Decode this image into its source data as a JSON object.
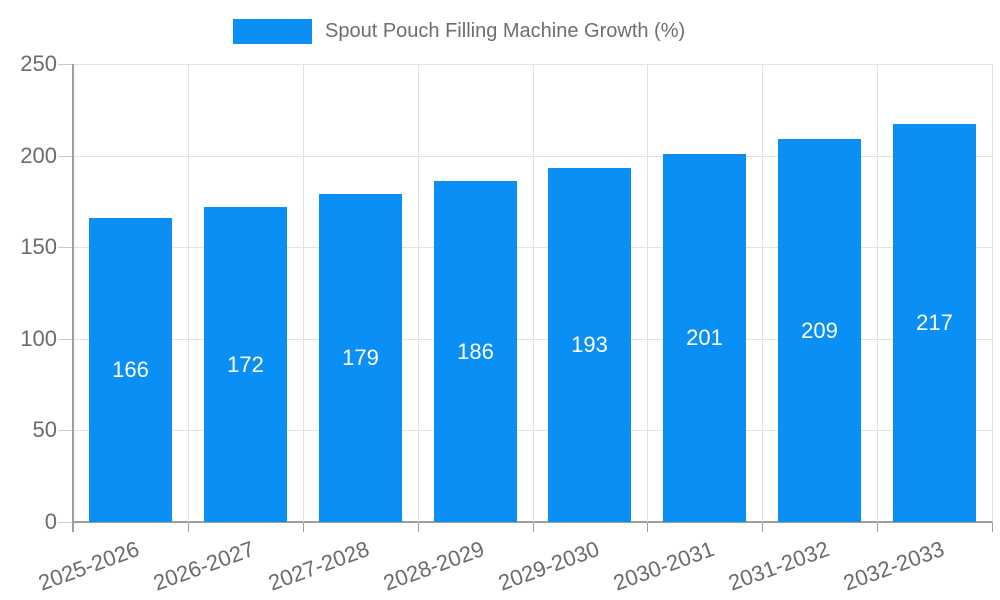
{
  "chart_data": {
    "type": "bar",
    "title": "Spout Pouch Filling Machine Growth (%)",
    "legend": {
      "label": "Spout Pouch Filling Machine Growth (%)",
      "position": "top"
    },
    "categories": [
      "2025-2026",
      "2026-2027",
      "2027-2028",
      "2028-2029",
      "2029-2030",
      "2030-2031",
      "2031-2032",
      "2032-2033"
    ],
    "values": [
      166,
      172,
      179,
      186,
      193,
      201,
      209,
      217
    ],
    "bar_labels": [
      "166",
      "172",
      "179",
      "186",
      "193",
      "201",
      "209",
      "217"
    ],
    "xlabel": "",
    "ylabel": "",
    "ylim": [
      0,
      250
    ],
    "yticks": [
      0,
      50,
      100,
      150,
      200,
      250
    ],
    "grid": "on",
    "legend_position": "top",
    "colors": {
      "bar": "#0a90f4",
      "bar_value_text": "#ffffff",
      "axis_text": "#6b6b6b",
      "gridline": "#e2e2e2",
      "axis_line": "#9e9e9e"
    }
  }
}
